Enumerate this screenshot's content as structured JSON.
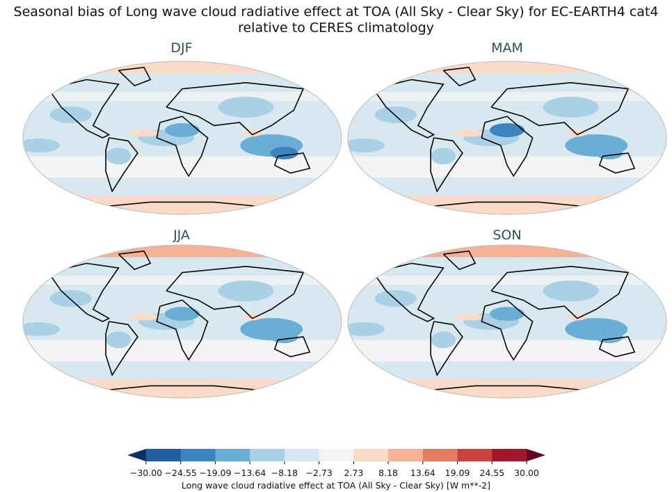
{
  "title_line1": "Seasonal bias of Long wave cloud radiative effect at TOA (All Sky - Clear Sky) for EC-EARTH4 cat4",
  "title_line2": "relative to CERES climatology",
  "panels": [
    {
      "label": "DJF"
    },
    {
      "label": "MAM"
    },
    {
      "label": "JJA"
    },
    {
      "label": "SON"
    }
  ],
  "projection": "Robinson",
  "colorbar": {
    "label": "Long wave cloud radiative effect at TOA (All Sky - Clear Sky) [W m**-2]",
    "ticks": [
      "−30.00",
      "−24.55",
      "−19.09",
      "−13.64",
      "−8.18",
      "−2.73",
      "2.73",
      "8.18",
      "13.64",
      "19.09",
      "24.55",
      "30.00"
    ],
    "colors": [
      "#1f5fa0",
      "#3a84bf",
      "#6baed5",
      "#a9d0e5",
      "#d8e8f1",
      "#f5f5f5",
      "#fbdac7",
      "#f5b295",
      "#e27d63",
      "#c9423d",
      "#a2162a"
    ],
    "under_color": "#0a3162",
    "over_color": "#670021",
    "extend": "both"
  }
}
